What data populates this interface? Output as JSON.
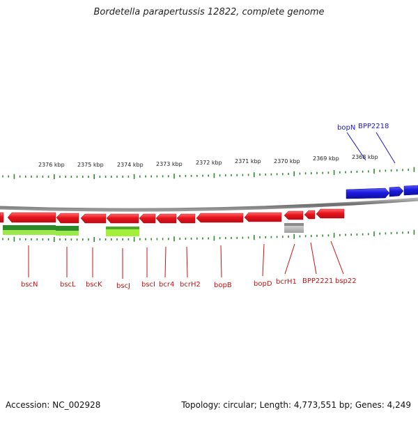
{
  "title": "Bordetella parapertussis 12822, complete genome",
  "footer": {
    "accession": "Accession: NC_002928",
    "topology": "Topology: circular; Length: 4,773,551 bp; Genes: 4,249"
  },
  "colors": {
    "forward_gene": "#1a1adb",
    "reverse_gene": "#e8141e",
    "backbone": "#7a7a7a",
    "tick": "#2f8a2f",
    "label_red": "#cc1111",
    "label_blue": "#1a1acc"
  },
  "kbp_labels": [
    "2376 kbp",
    "2375 kbp",
    "2374 kbp",
    "2373 kbp",
    "2372 kbp",
    "2371 kbp",
    "2370 kbp",
    "2369 kbp",
    "2368 kbp"
  ],
  "labels_top": [
    "bopN",
    "BPP2218"
  ],
  "labels_bottom": [
    "bscN",
    "bscL",
    "bscK",
    "bscJ",
    "bscI",
    "bcr4",
    "bcrH2",
    "bopB",
    "bopD",
    "bcrH1",
    "BPP2221",
    "bsp22"
  ]
}
